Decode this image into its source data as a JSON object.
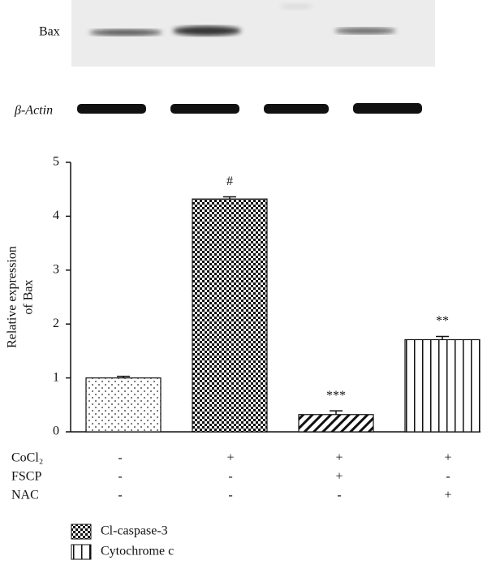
{
  "blot": {
    "labels": [
      "Bax",
      "β-Actin"
    ]
  },
  "chart_data": {
    "type": "bar",
    "y_label": [
      "Relative expression",
      "of Bax"
    ],
    "categories": [
      null,
      null,
      null,
      null
    ],
    "values": [
      1.0,
      4.32,
      0.32,
      1.71
    ],
    "errors": [
      0.03,
      0.04,
      0.07,
      0.06
    ],
    "annotations": [
      null,
      "#",
      "***",
      "**"
    ],
    "patterns": [
      "dots",
      "checker",
      "diagonal",
      "vertical"
    ],
    "ylim": [
      0,
      5
    ],
    "yticks": [
      0,
      1,
      2,
      3,
      4,
      5
    ],
    "treatments": [
      {
        "name": "CoCl₂",
        "signs": [
          "-",
          "+",
          "+",
          "+"
        ]
      },
      {
        "name": "FSCP",
        "signs": [
          "-",
          "-",
          "+",
          "-"
        ]
      },
      {
        "name": "NAC",
        "signs": [
          "-",
          "-",
          "-",
          "+"
        ]
      }
    ],
    "legend": [
      {
        "label": "Cl-caspase-3",
        "pattern": "checker"
      },
      {
        "label": "Cytochrome c",
        "pattern": "vertical"
      }
    ]
  }
}
